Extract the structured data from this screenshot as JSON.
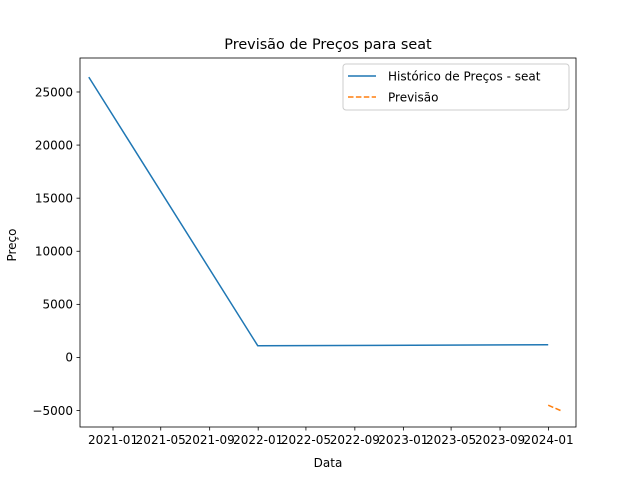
{
  "chart_data": {
    "type": "line",
    "title": "Previsão de Preços para seat",
    "xlabel": "Data",
    "ylabel": "Preço",
    "x_type": "date",
    "xlim": [
      "2020-10-10",
      "2024-03-10"
    ],
    "ylim": [
      -6550,
      28200
    ],
    "x_ticks": [
      "2021-01-01",
      "2021-05-01",
      "2021-09-01",
      "2022-01-01",
      "2022-05-01",
      "2022-09-01",
      "2023-01-01",
      "2023-05-01",
      "2023-09-01",
      "2024-01-01"
    ],
    "x_tick_labels": [
      "2021-01",
      "2021-05",
      "2021-09",
      "2022-01",
      "2022-05",
      "2022-09",
      "2023-01",
      "2023-05",
      "2023-09",
      "2024-01"
    ],
    "y_ticks": [
      -5000,
      0,
      5000,
      10000,
      15000,
      20000,
      25000
    ],
    "y_tick_labels": [
      "−5000",
      "0",
      "5000",
      "10000",
      "15000",
      "20000",
      "25000"
    ],
    "grid": false,
    "legend_position": "top-right",
    "series": [
      {
        "name": "Histórico de Preços - seat",
        "style": "solid",
        "color": "#1f77b4",
        "points": [
          {
            "x": "2020-11-01",
            "y": 26400
          },
          {
            "x": "2021-12-31",
            "y": 1100
          },
          {
            "x": "2023-12-31",
            "y": 1200
          }
        ]
      },
      {
        "name": "Previsão",
        "style": "dashed",
        "color": "#ff7f0e",
        "points": [
          {
            "x": "2023-12-31",
            "y": -4500
          },
          {
            "x": "2024-01-31",
            "y": -5000
          }
        ]
      }
    ]
  }
}
